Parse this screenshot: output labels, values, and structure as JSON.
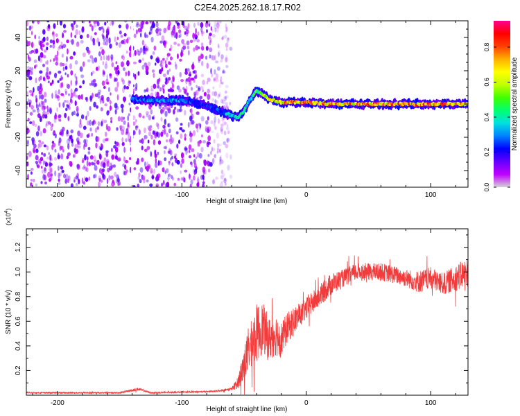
{
  "figure_title": "C2E4.2025.262.18.17.R02",
  "chart_data": [
    {
      "type": "heatmap",
      "title": "C2E4.2025.262.18.17.R02",
      "xlabel": "Height of straight line (km)",
      "ylabel": "Frequency (Hz)",
      "xlim": [
        -225,
        130
      ],
      "ylim": [
        -50,
        50
      ],
      "xticks": [
        -200,
        -100,
        0,
        100
      ],
      "yticks": [
        -40,
        -20,
        0,
        20,
        40
      ],
      "colorbar": {
        "label": "Normalized spectral amplitude",
        "range": [
          0.0,
          0.95
        ],
        "ticks": [
          "0.0",
          "0.2",
          "0.4",
          "0.6",
          "0.8"
        ],
        "colormap": [
          "#d4d4d4",
          "#c000ff",
          "#6400ff",
          "#0000ff",
          "#0080ff",
          "#00e0e0",
          "#00ff70",
          "#40ff00",
          "#c0ff00",
          "#ffff00",
          "#ffb000",
          "#ff4000",
          "#ff0000",
          "#ff0090"
        ]
      },
      "noise_region": {
        "x": [
          -225,
          -65
        ],
        "frequency": [
          -50,
          50
        ],
        "typical_amplitude": 0.1
      },
      "gap_line_x": -140,
      "signal_track": {
        "x": [
          -140,
          -120,
          -100,
          -90,
          -80,
          -70,
          -60,
          -55,
          -50,
          -45,
          -40,
          -35,
          -30,
          -20,
          0,
          20,
          40,
          60,
          80,
          100,
          130
        ],
        "frequency": [
          3,
          2,
          2,
          1,
          -1,
          -4,
          -7,
          -8,
          -4,
          3,
          8,
          6,
          3,
          1,
          1,
          0,
          0,
          0,
          0,
          0,
          0
        ],
        "amplitude": [
          0.3,
          0.35,
          0.35,
          0.3,
          0.25,
          0.3,
          0.45,
          0.5,
          0.5,
          0.45,
          0.55,
          0.6,
          0.7,
          0.85,
          0.9,
          0.9,
          0.85,
          0.9,
          0.85,
          0.9,
          0.8
        ]
      }
    },
    {
      "type": "line",
      "xlabel": "Height of straight line (km)",
      "ylabel": "SNR (10 * v/v)",
      "y_multiplier": "(x10",
      "y_multiplier_exp": "4",
      "y_multiplier_close": ")",
      "xlim": [
        -225,
        130
      ],
      "ylim": [
        0,
        1.35
      ],
      "xticks": [
        -200,
        -100,
        0,
        100
      ],
      "yticks": [
        0.2,
        0.4,
        0.6,
        0.8,
        1.0,
        1.2
      ],
      "ytick_labels": [
        "0.2",
        "0.4",
        "0.6",
        "0.8",
        "1.0",
        "1.2"
      ],
      "color": "#f03c3c",
      "series": [
        {
          "x": [
            -225,
            -150,
            -135,
            -125,
            -75,
            -60,
            -55,
            -50,
            -45,
            -40,
            -35,
            -30,
            -25,
            -20,
            -15,
            -10,
            -5,
            0,
            10,
            20,
            30,
            40,
            50,
            60,
            70,
            80,
            90,
            100,
            110,
            120,
            130
          ],
          "y": [
            0.02,
            0.02,
            0.05,
            0.02,
            0.03,
            0.05,
            0.1,
            0.25,
            0.4,
            0.5,
            0.55,
            0.45,
            0.5,
            0.45,
            0.55,
            0.6,
            0.65,
            0.7,
            0.8,
            0.9,
            0.95,
            1.0,
            1.0,
            1.0,
            0.98,
            0.95,
            0.92,
            0.95,
            0.9,
            0.95,
            1.0
          ],
          "spread": [
            0.01,
            0.01,
            0.02,
            0.01,
            0.01,
            0.02,
            0.08,
            0.25,
            0.3,
            0.4,
            0.35,
            0.3,
            0.3,
            0.25,
            0.2,
            0.2,
            0.15,
            0.15,
            0.15,
            0.15,
            0.12,
            0.12,
            0.12,
            0.12,
            0.12,
            0.12,
            0.15,
            0.15,
            0.15,
            0.18,
            0.2
          ]
        }
      ]
    }
  ]
}
